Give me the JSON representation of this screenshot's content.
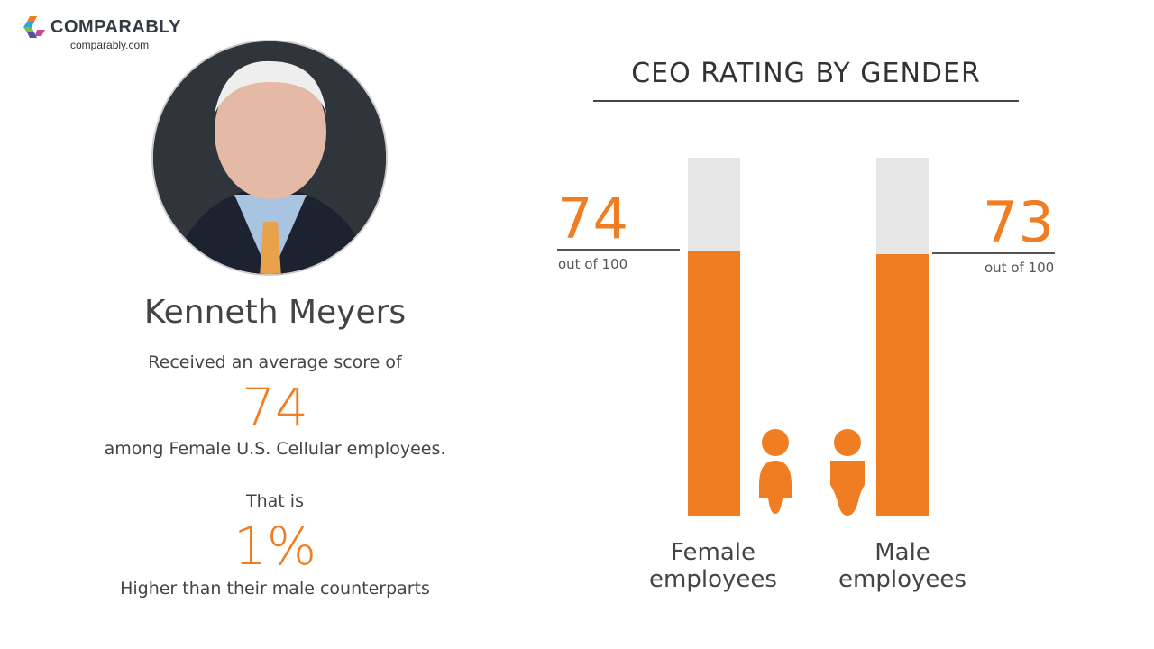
{
  "brand": {
    "name": "COMPARABLY",
    "url": "comparably.com"
  },
  "profile": {
    "name": "Kenneth Meyers",
    "line1": "Received an average score of",
    "score": "74",
    "line2": "among Female U.S. Cellular employees.",
    "line3": "That is",
    "diff": "1%",
    "line4": "Higher than their male counterparts"
  },
  "colors": {
    "accent": "#f07d22",
    "track": "#e6e6e6"
  },
  "chart_data": {
    "type": "bar",
    "title": "CEO RATING BY GENDER",
    "categories": [
      "Female employees",
      "Male employees"
    ],
    "values": [
      74,
      73
    ],
    "value_labels": [
      "74",
      "73"
    ],
    "unit_label": "out of 100",
    "ylim": [
      0,
      100
    ],
    "cat_lines": [
      [
        "Female",
        "employees"
      ],
      [
        "Male",
        "employees"
      ]
    ]
  }
}
